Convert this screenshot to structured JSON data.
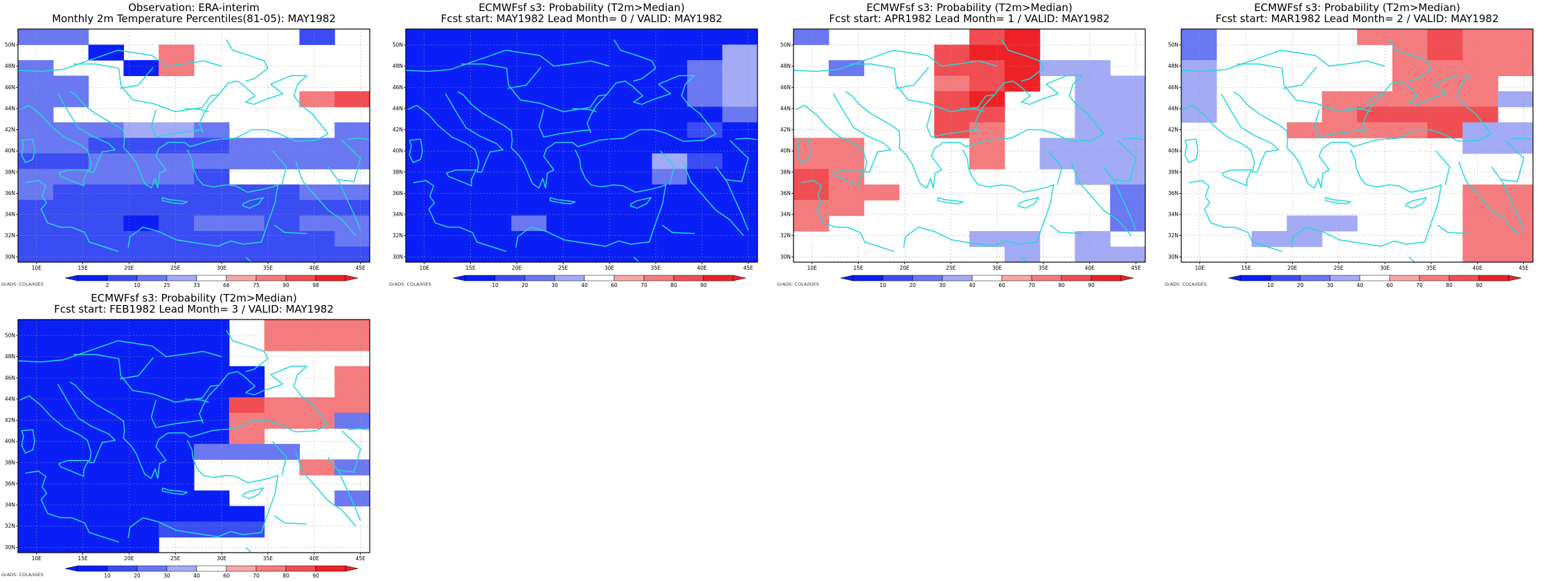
{
  "palette": {
    "blue_scale": [
      "#0a1ff5",
      "#3a4df2",
      "#6a78f2",
      "#a3abf5"
    ],
    "red_scale": [
      "#f8a7a9",
      "#f47b7e",
      "#f04e52",
      "#ee2226"
    ],
    "coastline": "#22d8d8",
    "grid": "#9a9a9a"
  },
  "credit": "GrADS: COLA/IGES",
  "axis": {
    "lon_ticks": [
      "10E",
      "15E",
      "20E",
      "25E",
      "30E",
      "35E",
      "40E",
      "45E"
    ],
    "lat_ticks": [
      "50N",
      "48N",
      "46N",
      "44N",
      "42N",
      "40N",
      "38N",
      "36N",
      "34N",
      "32N",
      "30N"
    ]
  },
  "panels": [
    {
      "title_line1": "Observation: ERA-interim",
      "title_line2": "Monthly 2m Temperature Percentiles(81-05): MAY1982",
      "colorbar": {
        "labels": [
          "2",
          "10",
          "25",
          "33",
          "66",
          "75",
          "90",
          "98"
        ]
      },
      "grid_rows": [
        "3300000020",
        "0010600000",
        "3001600000",
        "3300000000",
        "3300000067",
        "3000000000",
        "3334430003",
        "3322223333",
        "2233333333",
        "3333320000",
        "3222222233",
        "2222222222",
        "2221233233",
        "2222222223",
        "2222222222"
      ]
    },
    {
      "title_line1": "ECMWFsf s3: Probability (T2m>Median)",
      "title_line2": "Fcst start: MAY1982  Lead Month= 0 / VALID: MAY1982",
      "colorbar": {
        "labels": [
          "10",
          "20",
          "30",
          "40",
          "60",
          "70",
          "80",
          "90"
        ]
      },
      "grid_rows": [
        "1111111111",
        "1111111114",
        "1111111134",
        "1111111134",
        "1111111134",
        "1111111113",
        "1111111121",
        "1111111111",
        "1111111421",
        "1111111311",
        "1111111111",
        "1111111111",
        "1113111111",
        "1111111111",
        "1111111111"
      ]
    },
    {
      "title_line1": "ECMWFsf s3: Probability (T2m>Median)",
      "title_line2": "Fcst start: APR1982  Lead Month= 1 / VALID: MAY1982",
      "colorbar": {
        "labels": [
          "10",
          "20",
          "30",
          "40",
          "60",
          "70",
          "80",
          "90"
        ]
      },
      "grid_rows": [
        "3000078000",
        "0000788000",
        "0300778440",
        "0000678044",
        "0000780044",
        "0000770044",
        "0000760044",
        "6600060444",
        "6600060444",
        "7600000044",
        "7660000003",
        "6600000003",
        "6000000003",
        "0000044040",
        "0000004044"
      ]
    },
    {
      "title_line1": "ECMWFsf s3: Probability (T2m>Median)",
      "title_line2": "Fcst start: MAR1982  Lead Month= 2 / VALID: MAY1982",
      "colorbar": {
        "labels": [
          "10",
          "20",
          "30",
          "40",
          "60",
          "70",
          "80",
          "90"
        ]
      },
      "grid_rows": [
        "3000066766",
        "3000006766",
        "4000006666",
        "4000006660",
        "4000666664",
        "4000677770",
        "0006666744",
        "0000000044",
        "0000000000",
        "0000000000",
        "0000000066",
        "0000000066",
        "0004400066",
        "0044000066",
        "0000000066"
      ]
    },
    {
      "title_line1": "ECMWFsf s3: Probability (T2m>Median)",
      "title_line2": "Fcst start: FEB1982  Lead Month= 3 / VALID: MAY1982",
      "colorbar": {
        "labels": [
          "10",
          "20",
          "30",
          "40",
          "60",
          "70",
          "80",
          "90"
        ]
      },
      "grid_rows": [
        "1111110666",
        "1111110666",
        "1111110000",
        "1111111006",
        "1111111006",
        "1111117666",
        "1111116663",
        "1111116000",
        "1111133300",
        "1111100063",
        "1111100000",
        "1111110003",
        "1111111000",
        "1111222000",
        "1111000000"
      ]
    }
  ]
}
